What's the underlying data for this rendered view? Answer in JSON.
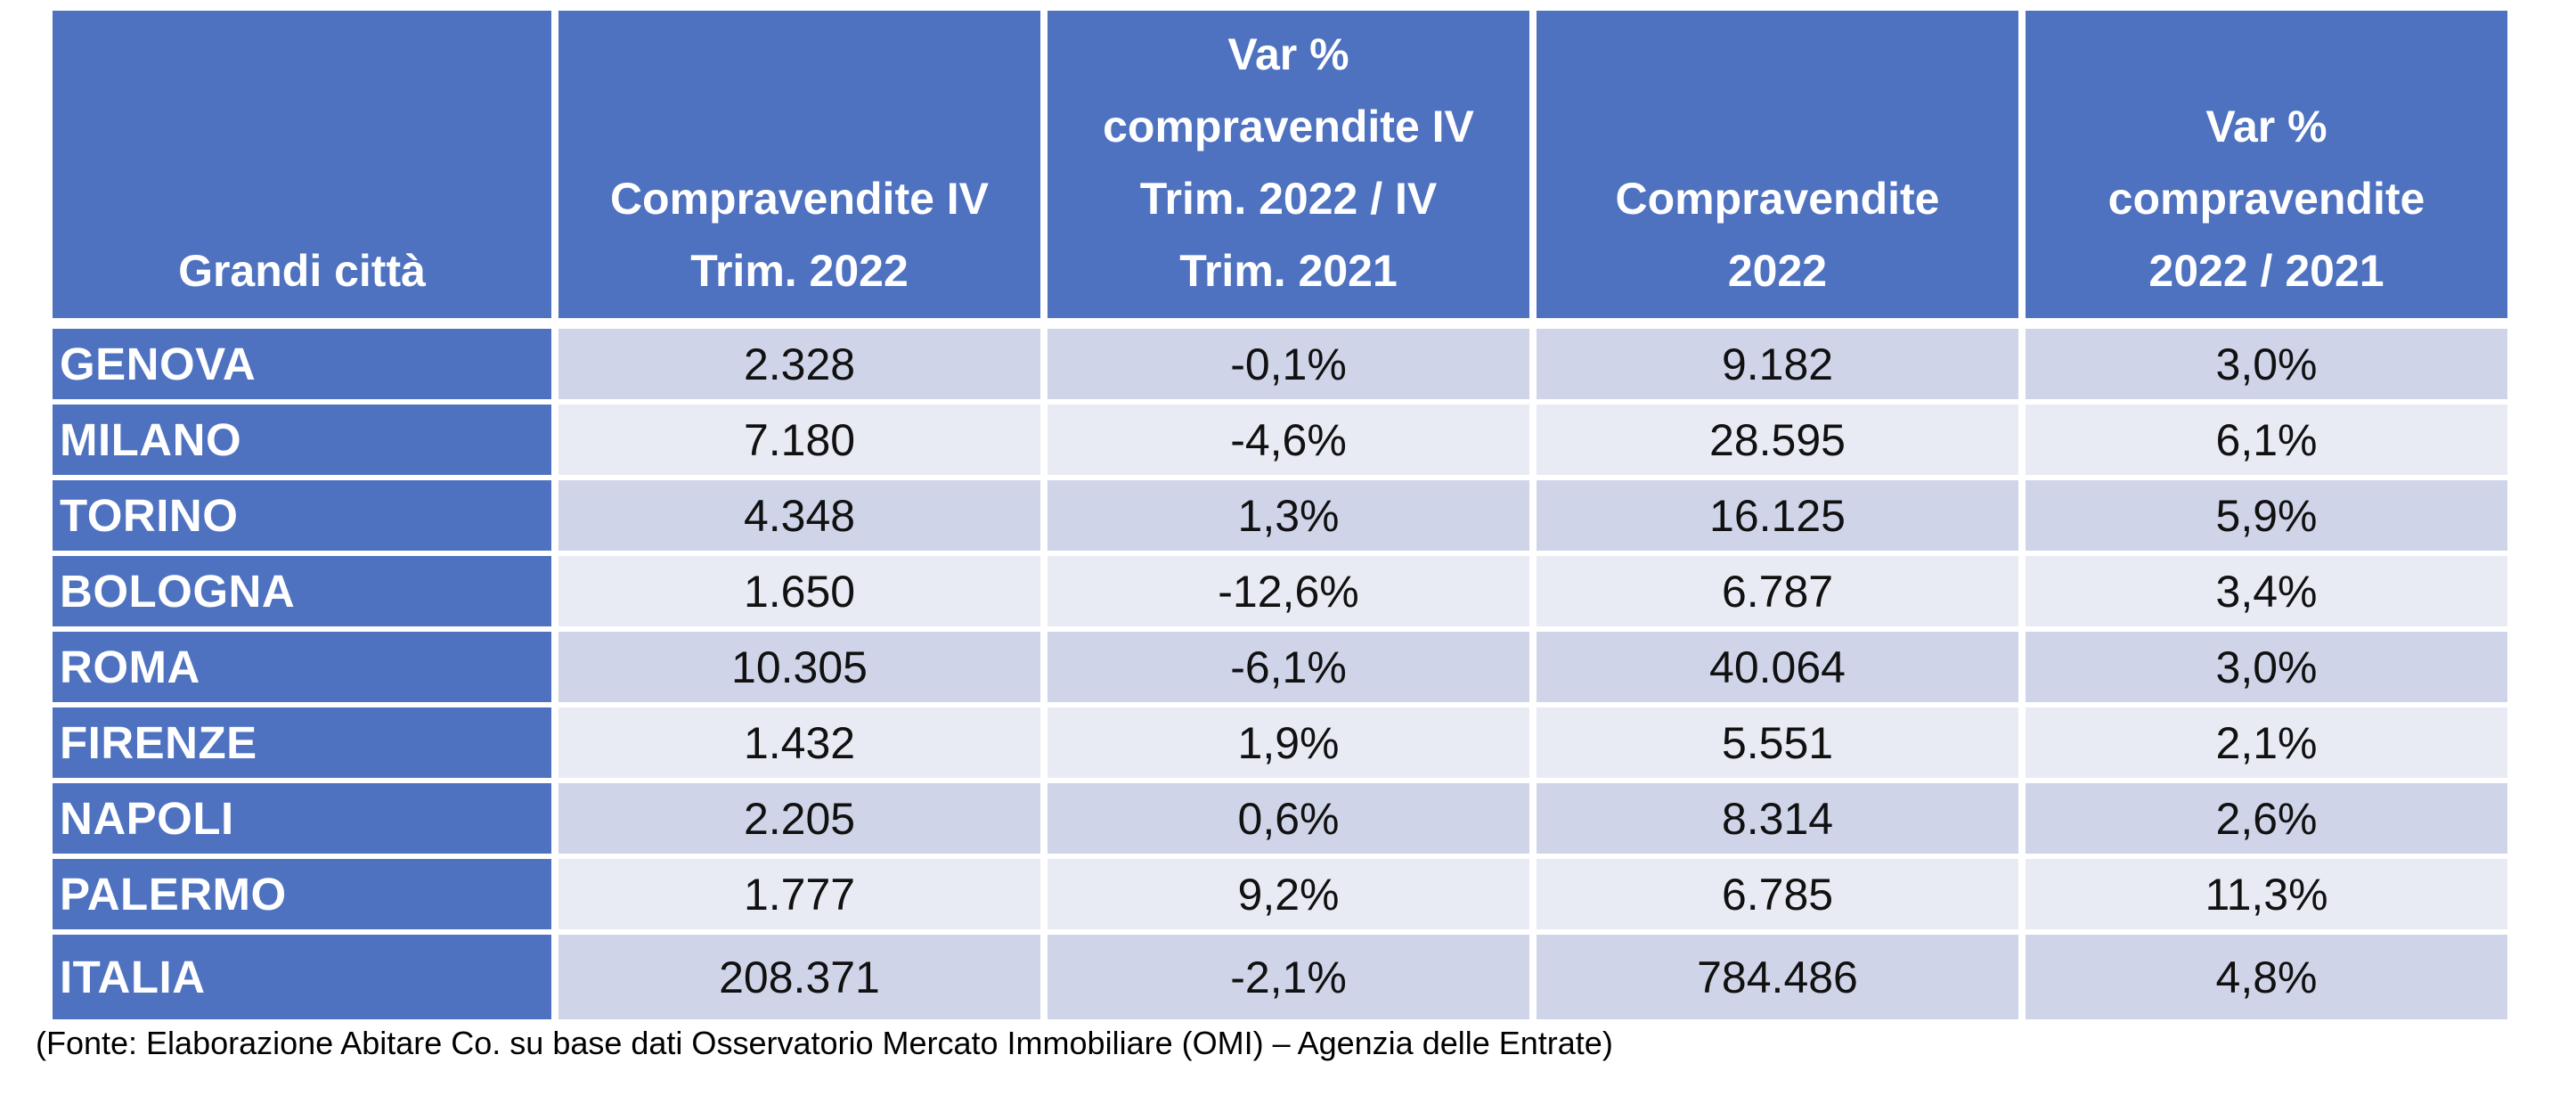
{
  "colors": {
    "header_blue": "#4E72C0",
    "band_dark": "#CFD4E8",
    "band_light": "#E9EBF4",
    "header_text": "#FFFFFF",
    "value_text": "#111111",
    "gap_white": "#FFFFFF"
  },
  "chart_data": {
    "type": "table",
    "title": "",
    "columns": [
      {
        "key": "grandi-citta",
        "label": "Grandi città",
        "lines": [
          "Grandi città"
        ]
      },
      {
        "key": "compravendite-iv-trim-2022",
        "label": "Compravendite IV Trim. 2022",
        "lines": [
          "Compravendite IV",
          "Trim. 2022"
        ]
      },
      {
        "key": "var-compravendite-iv-trim",
        "label": "Var % compravendite IV Trim. 2022 / IV Trim. 2021",
        "lines": [
          "Var %",
          "compravendite IV",
          "Trim. 2022 / IV",
          "Trim. 2021"
        ]
      },
      {
        "key": "compravendite-2022",
        "label": "Compravendite 2022",
        "lines": [
          "Compravendite",
          "2022"
        ]
      },
      {
        "key": "var-compravendite-2022-2021",
        "label": "Var % compravendite 2022 / 2021",
        "lines": [
          "Var %",
          "compravendite",
          "2022 / 2021"
        ]
      }
    ],
    "rows": [
      {
        "city": "GENOVA",
        "values": [
          "2.328",
          "-0,1%",
          "9.182",
          "3,0%"
        ]
      },
      {
        "city": "MILANO",
        "values": [
          "7.180",
          "-4,6%",
          "28.595",
          "6,1%"
        ]
      },
      {
        "city": "TORINO",
        "values": [
          "4.348",
          "1,3%",
          "16.125",
          "5,9%"
        ]
      },
      {
        "city": "BOLOGNA",
        "values": [
          "1.650",
          "-12,6%",
          "6.787",
          "3,4%"
        ]
      },
      {
        "city": "ROMA",
        "values": [
          "10.305",
          "-6,1%",
          "40.064",
          "3,0%"
        ]
      },
      {
        "city": "FIRENZE",
        "values": [
          "1.432",
          "1,9%",
          "5.551",
          "2,1%"
        ]
      },
      {
        "city": "NAPOLI",
        "values": [
          "2.205",
          "0,6%",
          "8.314",
          "2,6%"
        ]
      },
      {
        "city": "PALERMO",
        "values": [
          "1.777",
          "9,2%",
          "6.785",
          "11,3%"
        ]
      }
    ],
    "total_row": {
      "city": "ITALIA",
      "values": [
        "208.371",
        "-2,1%",
        "784.486",
        "4,8%"
      ]
    },
    "source_note": "(Fonte: Elaborazione Abitare Co. su base dati Osservatorio Mercato Immobiliare (OMI) – Agenzia delle Entrate)"
  }
}
